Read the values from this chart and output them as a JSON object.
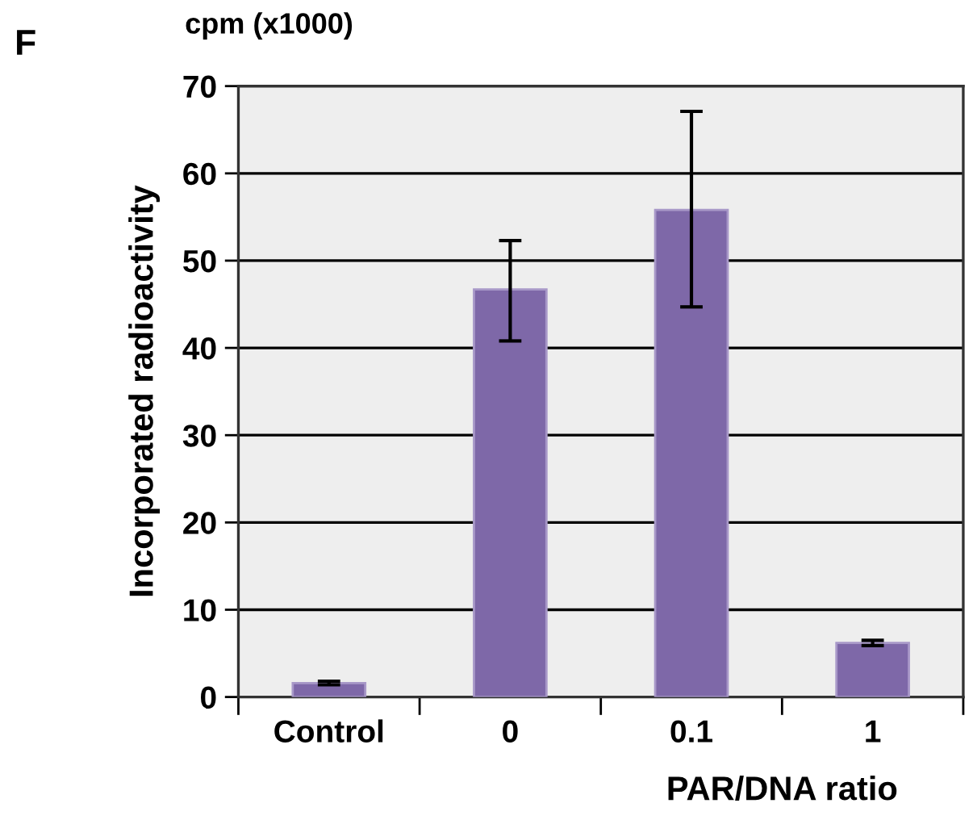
{
  "chart_data": {
    "type": "bar",
    "xlabel": "PAR/DNA ratio",
    "ylabel": "Incorporated radioactivity",
    "annotations": [
      "F",
      "cpm (x1000)"
    ],
    "categories": [
      "Control",
      "0",
      "0.1",
      "1"
    ],
    "values": [
      1.6,
      46.7,
      55.8,
      6.2
    ],
    "errors": [
      0.2,
      [
        40.8,
        52.3
      ],
      [
        44.7,
        67.1
      ],
      0.3
    ],
    "color": "#7e68a8",
    "ylim": [
      0,
      70
    ],
    "yticks": [
      0,
      10,
      20,
      30,
      40,
      50,
      60,
      70
    ],
    "grid": "y"
  }
}
